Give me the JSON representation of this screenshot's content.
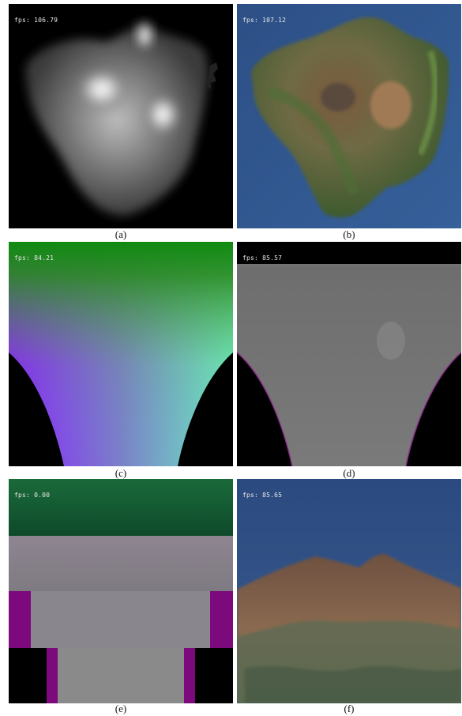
{
  "panels": [
    {
      "id": "a",
      "fps": "fps: 106.79",
      "caption": "(a)"
    },
    {
      "id": "b",
      "fps": "fps: 107.12",
      "caption": "(b)"
    },
    {
      "id": "c",
      "fps": "fps: 84.21",
      "caption": "(c)"
    },
    {
      "id": "d",
      "fps": "fps: 85.57",
      "caption": "(d)"
    },
    {
      "id": "e",
      "fps": "fps: 0.00",
      "caption": "(e)"
    },
    {
      "id": "f",
      "fps": "fps: 85.65",
      "caption": "(f)"
    }
  ]
}
